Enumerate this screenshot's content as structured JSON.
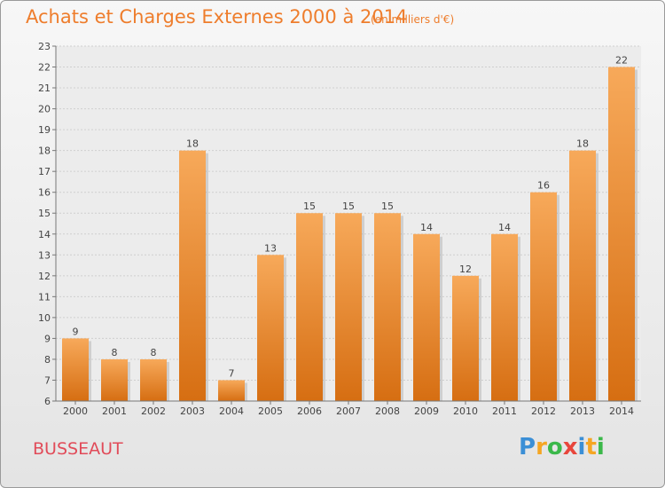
{
  "header": {
    "title": "Achats et Charges Externes 2000 à 2014",
    "subtitle": "(en milliers d'€)"
  },
  "footer": {
    "commune": "BUSSEAUT",
    "logo_letters": [
      "P",
      "r",
      "o",
      "x",
      "i",
      "t",
      "i"
    ],
    "logo_colors": [
      "#3b8fd6",
      "#f5a623",
      "#3bb84a",
      "#e8463c",
      "#3b8fd6",
      "#f5a623",
      "#3bb84a"
    ]
  },
  "colors": {
    "bar_top": "#f7a95a",
    "bar_bottom": "#d66e12",
    "accent": "#ee7d2c"
  },
  "chart_data": {
    "type": "bar",
    "categories": [
      "2000",
      "2001",
      "2002",
      "2003",
      "2004",
      "2005",
      "2006",
      "2007",
      "2008",
      "2009",
      "2010",
      "2011",
      "2012",
      "2013",
      "2014"
    ],
    "values": [
      9,
      8,
      8,
      18,
      7,
      13,
      15,
      15,
      15,
      14,
      12,
      14,
      16,
      18,
      22
    ],
    "title": "Achats et Charges Externes 2000 à 2014",
    "ylim": [
      6,
      23
    ],
    "yticks": [
      6,
      7,
      8,
      9,
      10,
      11,
      12,
      13,
      14,
      15,
      16,
      17,
      18,
      19,
      20,
      21,
      22,
      23
    ],
    "grid": true,
    "data_labels": true
  }
}
